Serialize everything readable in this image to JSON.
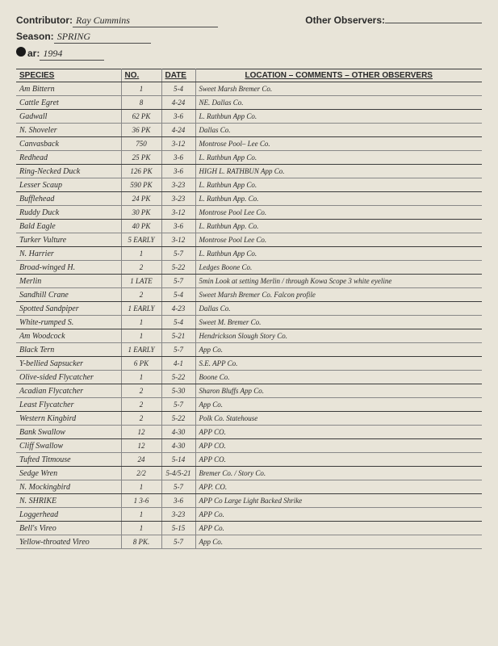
{
  "header": {
    "contributor_label": "Contributor:",
    "contributor_value": "Ray Cummins",
    "other_observers_label": "Other Observers:",
    "other_observers_value": "",
    "season_label": "Season:",
    "season_value": "SPRING",
    "year_label": "ar:",
    "year_value": "1994"
  },
  "columns": {
    "species": "SPECIES",
    "no": "NO.",
    "date": "DATE",
    "loc": "LOCATION – COMMENTS – OTHER OBSERVERS"
  },
  "rows": [
    {
      "s": "Am Bittern",
      "n": "1",
      "d": "5-4",
      "l": "Sweet Marsh   Bremer Co."
    },
    {
      "s": "Cattle Egret",
      "n": "8",
      "d": "4-24",
      "l": "NE. Dallas Co."
    },
    {
      "s": "Gadwall",
      "n": "62 PK",
      "d": "3-6",
      "l": "L. Rathbun  App Co.",
      "spacer_before": true
    },
    {
      "s": "N. Shoveler",
      "n": "36 PK",
      "d": "4-24",
      "l": "Dallas Co."
    },
    {
      "s": "Canvasback",
      "n": "750",
      "d": "3-12",
      "l": "Montrose Pool– Lee Co.",
      "spacer_before": true
    },
    {
      "s": "Redhead",
      "n": "25 PK",
      "d": "3-6",
      "l": "L. Rathbun   App Co."
    },
    {
      "s": "Ring-Necked Duck",
      "n": "126 PK",
      "d": "3-6",
      "l": "HIGH  L. RATHBUN   App Co.",
      "spacer_before": true
    },
    {
      "s": "Lesser Scaup",
      "n": "590 PK",
      "d": "3-23",
      "l": "L. Rathbun  App Co."
    },
    {
      "s": "Bufflehead",
      "n": "24 PK",
      "d": "3-23",
      "l": "L. Rathbun  App. Co.",
      "spacer_before": true
    },
    {
      "s": "Ruddy Duck",
      "n": "30 PK",
      "d": "3-12",
      "l": "Montrose Pool  Lee Co."
    },
    {
      "s": "Bald Eagle",
      "n": "40 PK",
      "d": "3-6",
      "l": "L. Rathbun  App. Co.",
      "spacer_before": true
    },
    {
      "s": "Turker Vulture",
      "n": "5 EARLY",
      "d": "3-12",
      "l": "Montrose Pool  Lee Co."
    },
    {
      "s": "N. Harrier",
      "n": "1",
      "d": "5-7",
      "l": "L. Rathbun  App Co.",
      "spacer_before": true
    },
    {
      "s": "Broad-winged H.",
      "n": "2",
      "d": "5-22",
      "l": "Ledges  Boone Co."
    },
    {
      "s": "Merlin",
      "n": "1 LATE",
      "d": "5-7",
      "l": "5min Look at setting Merlin / through Kowa Scope 3 white eyeline",
      "spacer_before": true,
      "hole": true
    },
    {
      "s": "Sandhill Crane",
      "n": "2",
      "d": "5-4",
      "l": "Sweet Marsh  Bremer Co.    Falcon profile"
    },
    {
      "s": "Spotted Sandpiper",
      "n": "1 EARLY",
      "d": "4-23",
      "l": "Dallas Co.",
      "spacer_before": true
    },
    {
      "s": "White-rumped S.",
      "n": "1",
      "d": "5-4",
      "l": "Sweet M.  Bremer Co."
    },
    {
      "s": "Am Woodcock",
      "n": "1",
      "d": "5-21",
      "l": "Hendrickson Slough  Story Co.",
      "spacer_before": true
    },
    {
      "s": "Black Tern",
      "n": "1 EARLY",
      "d": "5-7",
      "l": "App Co."
    },
    {
      "s": "Y-bellied Sapsucker",
      "n": "6 PK",
      "d": "4-1",
      "l": "S.E. APP Co.",
      "spacer_before": true
    },
    {
      "s": "Olive-sided Flycatcher",
      "n": "1",
      "d": "5-22",
      "l": "Boone Co."
    },
    {
      "s": "Acadian Flycatcher",
      "n": "2",
      "d": "5-30",
      "l": "Sharon Bluffs   App Co.",
      "spacer_before": true
    },
    {
      "s": "Least Flycatcher",
      "n": "2",
      "d": "5-7",
      "l": "App Co."
    },
    {
      "s": "Western Kingbird",
      "n": "2",
      "d": "5-22",
      "l": "Polk Co.  Statehouse",
      "spacer_before": true
    },
    {
      "s": "Bank Swallow",
      "n": "12",
      "d": "4-30",
      "l": "APP CO.",
      "red": true
    },
    {
      "s": "Cliff Swallow",
      "n": "12",
      "d": "4-30",
      "l": "APP CO.",
      "spacer_before": true
    },
    {
      "s": "Tufted Titmouse",
      "n": "24",
      "d": "5-14",
      "l": "APP CO."
    },
    {
      "s": "Sedge Wren",
      "n": "2/2",
      "d": "5-4/5-21",
      "l": "Bremer Co. / Story Co.",
      "spacer_before": true
    },
    {
      "s": "N. Mockingbird",
      "n": "1",
      "d": "5-7",
      "l": "APP. CO."
    },
    {
      "s": "N. SHRIKE",
      "n": "1 3-6",
      "d": "3-6",
      "l": "APP Co   Large  Light Backed Shrike",
      "spacer_before": true,
      "hole": true
    },
    {
      "s": "Loggerhead",
      "n": "1",
      "d": "3-23",
      "l": "APP Co."
    },
    {
      "s": "Bell's Vireo",
      "n": "1",
      "d": "5-15",
      "l": "APP Co.",
      "spacer_before": true
    },
    {
      "s": "Yellow-throated Vireo",
      "n": "8 PK.",
      "d": "5-7",
      "l": "App Co."
    }
  ]
}
